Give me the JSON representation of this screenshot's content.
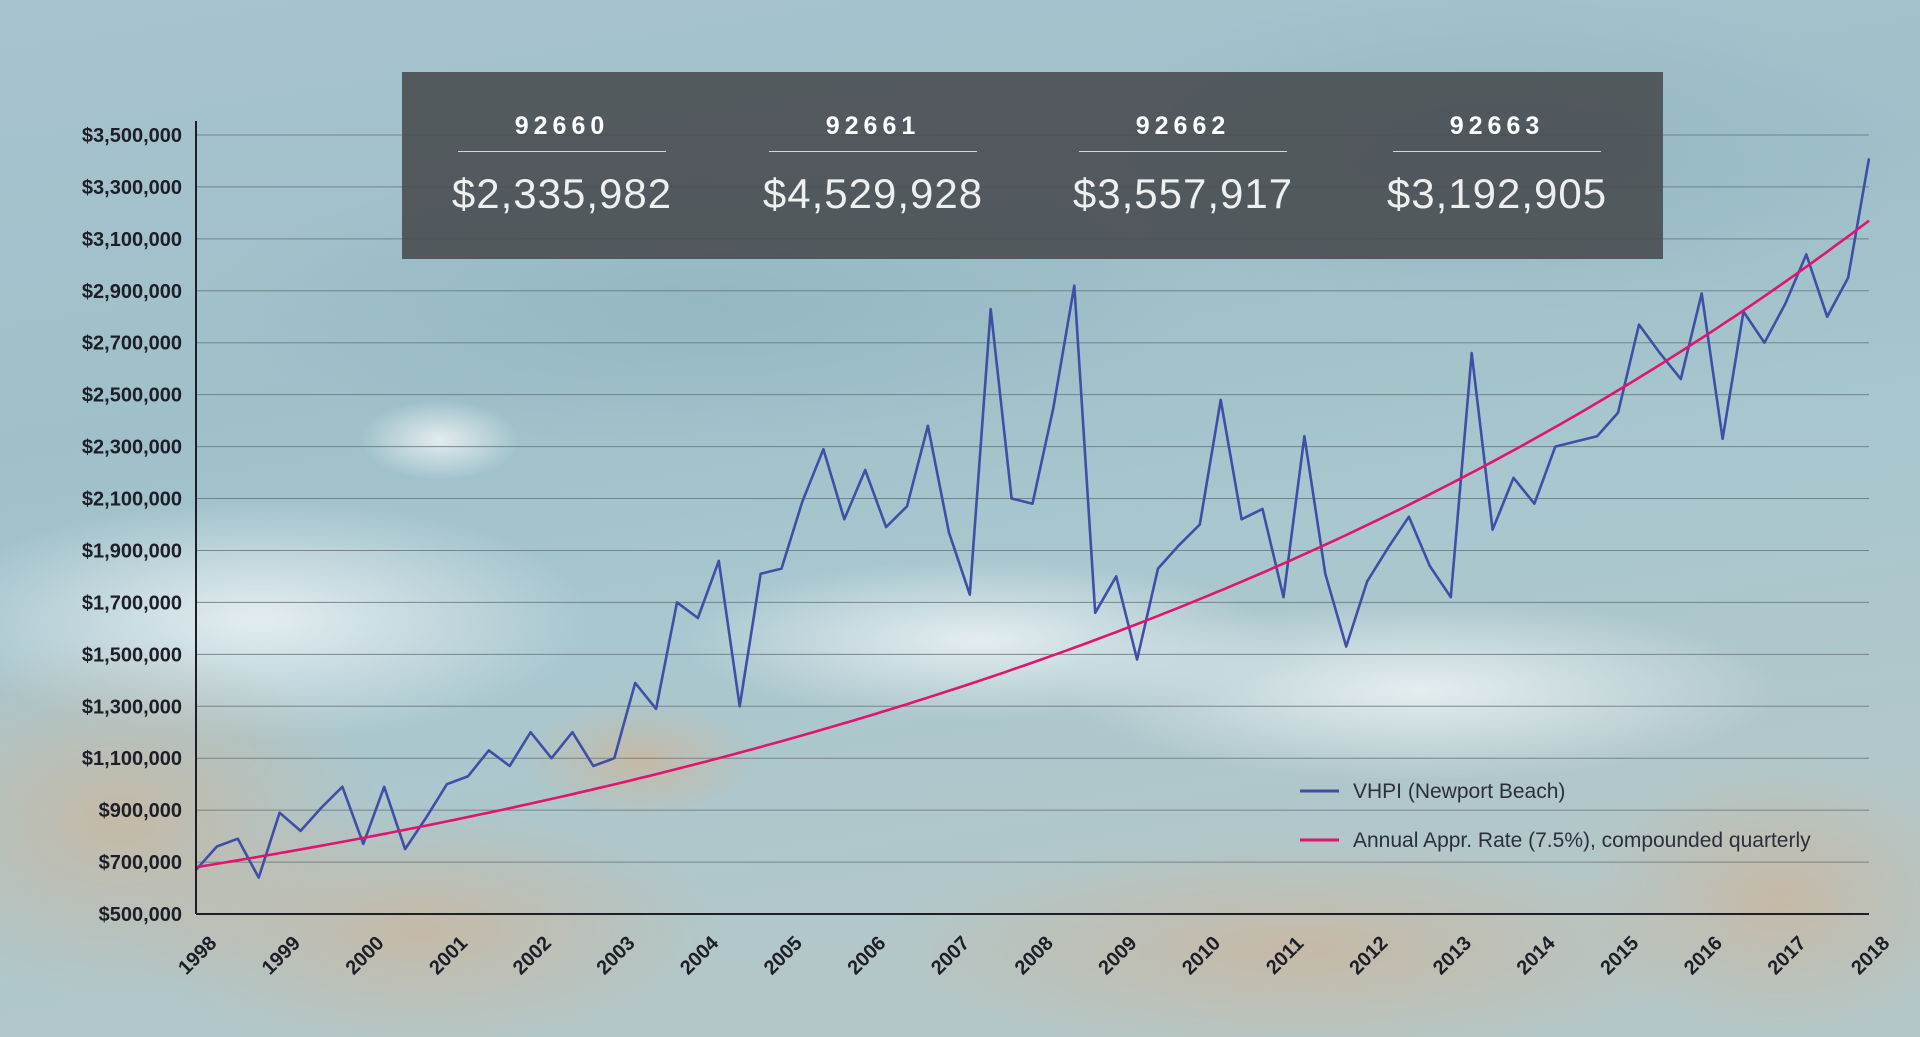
{
  "zip_panel": {
    "cards": [
      {
        "zip": "92660",
        "value": "$2,335,982"
      },
      {
        "zip": "92661",
        "value": "$4,529,928"
      },
      {
        "zip": "92662",
        "value": "$3,557,917"
      },
      {
        "zip": "92663",
        "value": "$3,192,905"
      }
    ]
  },
  "chart_data": {
    "type": "line",
    "title": "",
    "xlabel": "",
    "ylabel": "",
    "ylim": [
      500000,
      3500000
    ],
    "xlim": [
      1998,
      2018
    ],
    "y_ticks": [
      500000,
      700000,
      900000,
      1100000,
      1300000,
      1500000,
      1700000,
      1900000,
      2100000,
      2300000,
      2500000,
      2700000,
      2900000,
      3100000,
      3300000,
      3500000
    ],
    "y_tick_labels": [
      "$500,000",
      "$700,000",
      "$900,000",
      "$1,100,000",
      "$1,300,000",
      "$1,500,000",
      "$1,700,000",
      "$1,900,000",
      "$2,100,000",
      "$2,300,000",
      "$2,500,000",
      "$2,700,000",
      "$2,900,000",
      "$3,100,000",
      "$3,300,000",
      "$3,500,000"
    ],
    "x_ticks": [
      1998,
      1999,
      2000,
      2001,
      2002,
      2003,
      2004,
      2005,
      2006,
      2007,
      2008,
      2009,
      2010,
      2011,
      2012,
      2013,
      2014,
      2015,
      2016,
      2017,
      2018
    ],
    "x_tick_labels": [
      "1998",
      "1999",
      "2000",
      "2001",
      "2002",
      "2003",
      "2004",
      "2005",
      "2006",
      "2007",
      "2008",
      "2009",
      "2010",
      "2011",
      "2012",
      "2013",
      "2014",
      "2015",
      "2016",
      "2017",
      "2018"
    ],
    "grid": true,
    "legend_position": "bottom-right",
    "series": [
      {
        "name": "VHPI (Newport Beach)",
        "color": "#3f4fa6",
        "x": [
          1998.0,
          1998.25,
          1998.5,
          1998.75,
          1999.0,
          1999.25,
          1999.5,
          1999.75,
          2000.0,
          2000.25,
          2000.5,
          2000.75,
          2001.0,
          2001.25,
          2001.5,
          2001.75,
          2002.0,
          2002.25,
          2002.5,
          2002.75,
          2003.0,
          2003.25,
          2003.5,
          2003.75,
          2004.0,
          2004.25,
          2004.5,
          2004.75,
          2005.0,
          2005.25,
          2005.5,
          2005.75,
          2006.0,
          2006.25,
          2006.5,
          2006.75,
          2007.0,
          2007.25,
          2007.5,
          2007.75,
          2008.0,
          2008.25,
          2008.5,
          2008.75,
          2009.0,
          2009.25,
          2009.5,
          2009.75,
          2010.0,
          2010.25,
          2010.5,
          2010.75,
          2011.0,
          2011.25,
          2011.5,
          2011.75,
          2012.0,
          2012.25,
          2012.5,
          2012.75,
          2013.0,
          2013.25,
          2013.5,
          2013.75,
          2014.0,
          2014.25,
          2014.5,
          2014.75,
          2015.0,
          2015.25,
          2015.5,
          2015.75,
          2016.0,
          2016.25,
          2016.5,
          2016.75,
          2017.0,
          2017.25,
          2017.5,
          2017.75,
          2018.0
        ],
        "values": [
          670000,
          760000,
          790000,
          640000,
          890000,
          820000,
          910000,
          990000,
          770000,
          990000,
          750000,
          870000,
          1000000,
          1030000,
          1130000,
          1070000,
          1200000,
          1100000,
          1200000,
          1070000,
          1100000,
          1390000,
          1290000,
          1700000,
          1640000,
          1860000,
          1300000,
          1810000,
          1830000,
          2090000,
          2290000,
          2020000,
          2210000,
          1990000,
          2070000,
          2380000,
          1970000,
          1730000,
          2830000,
          2100000,
          2080000,
          2450000,
          2920000,
          1660000,
          1800000,
          1480000,
          1830000,
          1920000,
          2000000,
          2480000,
          2020000,
          2060000,
          1720000,
          2340000,
          1810000,
          1530000,
          1780000,
          1910000,
          2030000,
          1840000,
          1720000,
          2660000,
          1980000,
          2180000,
          2080000,
          2300000,
          2320000,
          2340000,
          2430000,
          2770000,
          2660000,
          2560000,
          2890000,
          2330000,
          2820000,
          2700000,
          2850000,
          3040000,
          2800000,
          2950000,
          3410000
        ]
      },
      {
        "name": "Annual Appr. Rate (7.5%), compounded quarterly",
        "color": "#e0156e",
        "type": "exponential",
        "start_value": 680000,
        "end_value": 3170000
      }
    ]
  }
}
